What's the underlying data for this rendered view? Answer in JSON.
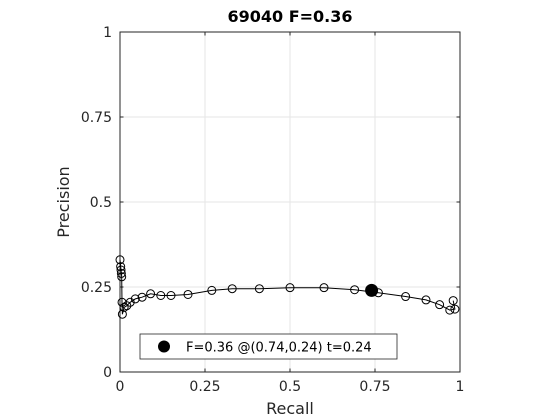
{
  "chart_data": {
    "type": "line",
    "title": "69040 F=0.36",
    "xlabel": "Recall",
    "ylabel": "Precision",
    "xlim": [
      0,
      1
    ],
    "ylim": [
      0,
      1
    ],
    "x_ticks": [
      0,
      0.25,
      0.5,
      0.75,
      1
    ],
    "x_tick_labels": [
      "0",
      "0.25",
      "0.5",
      "0.75",
      "1"
    ],
    "y_ticks": [
      0,
      0.25,
      0.5,
      0.75,
      1
    ],
    "y_tick_labels": [
      "0",
      "0.25",
      "0.5",
      "0.75",
      "1"
    ],
    "grid": true,
    "legend_position": "bottom",
    "series": [
      {
        "points": [
          [
            0.0,
            0.33
          ],
          [
            0.002,
            0.31
          ],
          [
            0.003,
            0.3
          ],
          [
            0.004,
            0.29
          ],
          [
            0.005,
            0.28
          ],
          [
            0.006,
            0.205
          ],
          [
            0.007,
            0.17
          ],
          [
            0.012,
            0.19
          ],
          [
            0.02,
            0.195
          ],
          [
            0.03,
            0.205
          ],
          [
            0.045,
            0.215
          ],
          [
            0.065,
            0.22
          ],
          [
            0.09,
            0.23
          ],
          [
            0.12,
            0.225
          ],
          [
            0.15,
            0.225
          ],
          [
            0.2,
            0.228
          ],
          [
            0.27,
            0.24
          ],
          [
            0.33,
            0.245
          ],
          [
            0.41,
            0.245
          ],
          [
            0.5,
            0.248
          ],
          [
            0.6,
            0.248
          ],
          [
            0.69,
            0.242
          ],
          [
            0.76,
            0.233
          ],
          [
            0.84,
            0.222
          ],
          [
            0.9,
            0.212
          ],
          [
            0.94,
            0.198
          ],
          [
            0.97,
            0.182
          ],
          [
            0.985,
            0.185
          ],
          [
            0.98,
            0.21
          ]
        ]
      }
    ],
    "marker": {
      "recall": 0.74,
      "precision": 0.24
    },
    "legend": {
      "label": "F=0.36 @(0.74,0.24) t=0.24"
    }
  },
  "colors": {
    "line": "#000000",
    "grid": "#e6e6e6",
    "axis": "#262626",
    "background": "#ffffff"
  }
}
